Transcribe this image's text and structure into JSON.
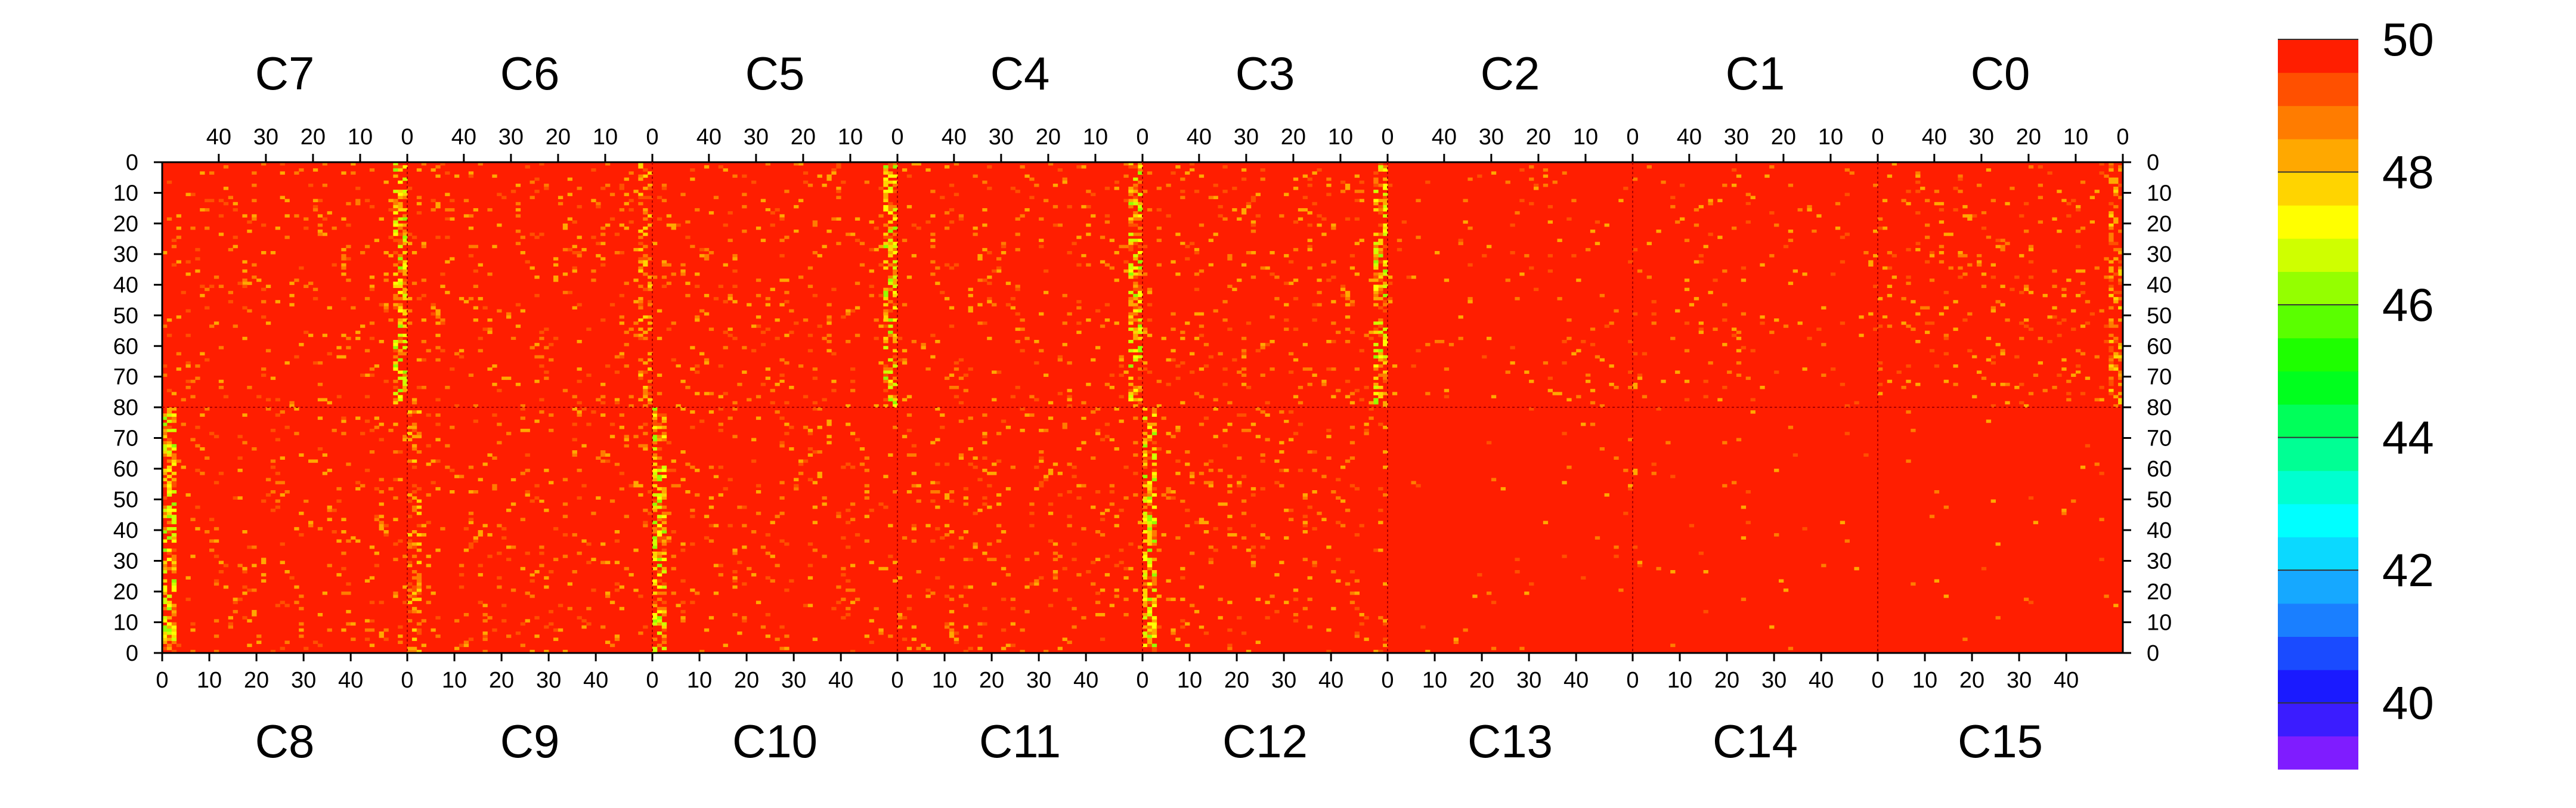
{
  "chart_data": {
    "type": "heatmap",
    "title": "",
    "top_chip_labels": [
      "C7",
      "C6",
      "C5",
      "C4",
      "C3",
      "C2",
      "C1",
      "C0"
    ],
    "bottom_chip_labels": [
      "C8",
      "C9",
      "C10",
      "C11",
      "C12",
      "C13",
      "C14",
      "C15"
    ],
    "top_column_ticks": [
      "40",
      "30",
      "20",
      "10",
      "0"
    ],
    "bottom_column_ticks": [
      "0",
      "10",
      "20",
      "30",
      "40"
    ],
    "row_ticks_top_half": [
      "0",
      "10",
      "20",
      "30",
      "40",
      "50",
      "60",
      "70"
    ],
    "row_ticks_center": "80",
    "row_ticks_bottom_half": [
      "70",
      "60",
      "50",
      "40",
      "30",
      "20",
      "10",
      "0"
    ],
    "columns_per_chip": 52,
    "rows_per_half": 80,
    "zrange": [
      39,
      50
    ],
    "colorbar": {
      "ticks": [
        "50",
        "48",
        "46",
        "44",
        "42",
        "40"
      ],
      "tick_values": [
        50,
        48,
        46,
        44,
        42,
        40
      ],
      "colors": [
        "#7f1cff",
        "#3b1cff",
        "#1a1aff",
        "#1a4bff",
        "#1a7fff",
        "#16a8ff",
        "#0bd9ff",
        "#00ffff",
        "#00ffcf",
        "#00ff94",
        "#00ff5a",
        "#00ff1e",
        "#1eff00",
        "#5aff00",
        "#94ff00",
        "#cfff00",
        "#ffff00",
        "#ffd400",
        "#ffa800",
        "#ff7c00",
        "#ff5000",
        "#ff1e00"
      ]
    },
    "hot_columns": [
      {
        "chip": "C7",
        "column": 0,
        "level": "high"
      },
      {
        "chip": "C6",
        "column": 0,
        "level": "medium"
      },
      {
        "chip": "C5",
        "column": 0,
        "level": "high"
      },
      {
        "chip": "C4",
        "column": 0,
        "level": "high"
      },
      {
        "chip": "C3",
        "column": 0,
        "level": "high"
      },
      {
        "chip": "C0",
        "column": 0,
        "level": "medium"
      },
      {
        "chip": "C8",
        "column": 0,
        "level": "high"
      },
      {
        "chip": "C9",
        "column": 0,
        "level": "medium"
      },
      {
        "chip": "C10",
        "column": 0,
        "level": "high"
      },
      {
        "chip": "C12",
        "column": 0,
        "level": "high"
      }
    ],
    "background_value": 50
  }
}
